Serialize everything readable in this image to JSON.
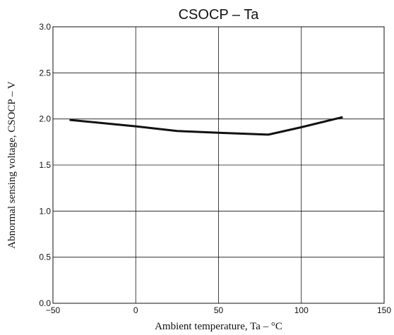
{
  "chart_data": {
    "type": "line",
    "title": "CSOCP  –  Ta",
    "xlabel": "Ambient temperature,  Ta  –  °C",
    "ylabel": "Abnormal sensing voltage,  CSOCP  –  V",
    "xlim": [
      -50,
      150
    ],
    "ylim": [
      0.0,
      3.0
    ],
    "xticks": [
      -50,
      0,
      50,
      100,
      150
    ],
    "xtick_labels": [
      "−50",
      "0",
      "50",
      "100",
      "150"
    ],
    "yticks": [
      0.0,
      0.5,
      1.0,
      1.5,
      2.0,
      2.5,
      3.0
    ],
    "ytick_labels": [
      "0.0",
      "0.5",
      "1.0",
      "1.5",
      "2.0",
      "2.5",
      "3.0"
    ],
    "grid": true,
    "series": [
      {
        "x": [
          -40,
          0,
          25,
          50,
          80,
          100,
          125
        ],
        "y": [
          1.99,
          1.92,
          1.87,
          1.85,
          1.83,
          1.91,
          2.02
        ]
      }
    ]
  }
}
